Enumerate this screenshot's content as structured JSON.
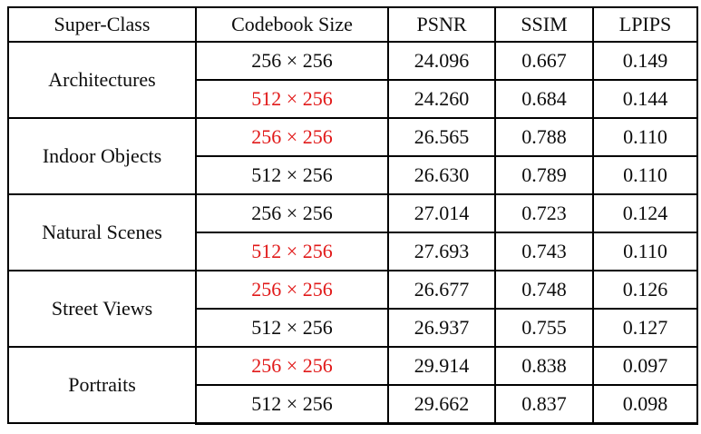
{
  "colors": {
    "highlight_red": "#e11919",
    "text": "#0d0d0d",
    "border": "#000000",
    "background": "#ffffff"
  },
  "table": {
    "headers": [
      "Super-Class",
      "Codebook Size",
      "PSNR",
      "SSIM",
      "LPIPS"
    ],
    "groups": [
      {
        "super_class": "Architectures",
        "rows": [
          {
            "codebook_size": "256 × 256",
            "red": false,
            "psnr": "24.096",
            "ssim": "0.667",
            "lpips": "0.149"
          },
          {
            "codebook_size": "512 × 256",
            "red": true,
            "psnr": "24.260",
            "ssim": "0.684",
            "lpips": "0.144"
          }
        ]
      },
      {
        "super_class": "Indoor Objects",
        "rows": [
          {
            "codebook_size": "256 × 256",
            "red": true,
            "psnr": "26.565",
            "ssim": "0.788",
            "lpips": "0.110"
          },
          {
            "codebook_size": "512 × 256",
            "red": false,
            "psnr": "26.630",
            "ssim": "0.789",
            "lpips": "0.110"
          }
        ]
      },
      {
        "super_class": "Natural Scenes",
        "rows": [
          {
            "codebook_size": "256 × 256",
            "red": false,
            "psnr": "27.014",
            "ssim": "0.723",
            "lpips": "0.124"
          },
          {
            "codebook_size": "512 × 256",
            "red": true,
            "psnr": "27.693",
            "ssim": "0.743",
            "lpips": "0.110"
          }
        ]
      },
      {
        "super_class": "Street Views",
        "rows": [
          {
            "codebook_size": "256 × 256",
            "red": true,
            "psnr": "26.677",
            "ssim": "0.748",
            "lpips": "0.126"
          },
          {
            "codebook_size": "512 × 256",
            "red": false,
            "psnr": "26.937",
            "ssim": "0.755",
            "lpips": "0.127"
          }
        ]
      },
      {
        "super_class": "Portraits",
        "rows": [
          {
            "codebook_size": "256 × 256",
            "red": true,
            "psnr": "29.914",
            "ssim": "0.838",
            "lpips": "0.097"
          },
          {
            "codebook_size": "512 × 256",
            "red": false,
            "psnr": "29.662",
            "ssim": "0.837",
            "lpips": "0.098"
          }
        ]
      }
    ]
  },
  "chart_data": {
    "type": "table",
    "title": "",
    "columns": [
      "Super-Class",
      "Codebook Size",
      "PSNR",
      "SSIM",
      "LPIPS"
    ],
    "rows": [
      [
        "Architectures",
        "256 × 256",
        24.096,
        0.667,
        0.149
      ],
      [
        "Architectures",
        "512 × 256",
        24.26,
        0.684,
        0.144
      ],
      [
        "Indoor Objects",
        "256 × 256",
        26.565,
        0.788,
        0.11
      ],
      [
        "Indoor Objects",
        "512 × 256",
        26.63,
        0.789,
        0.11
      ],
      [
        "Natural Scenes",
        "256 × 256",
        27.014,
        0.723,
        0.124
      ],
      [
        "Natural Scenes",
        "512 × 256",
        27.693,
        0.743,
        0.11
      ],
      [
        "Street Views",
        "256 × 256",
        26.677,
        0.748,
        0.126
      ],
      [
        "Street Views",
        "512 × 256",
        26.937,
        0.755,
        0.127
      ],
      [
        "Portraits",
        "256 × 256",
        29.914,
        0.838,
        0.097
      ],
      [
        "Portraits",
        "512 × 256",
        29.662,
        0.837,
        0.098
      ]
    ],
    "highlighted_rows_red_codebook": [
      1,
      2,
      5,
      6,
      8
    ]
  }
}
